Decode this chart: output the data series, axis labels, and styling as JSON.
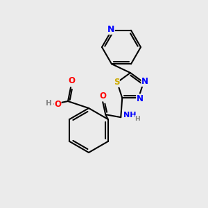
{
  "bg_color": "#ebebeb",
  "bond_color": "#000000",
  "bond_width": 1.5,
  "atom_colors": {
    "N": "#0000ff",
    "S": "#ccaa00",
    "O": "#ff0000",
    "C": "#000000",
    "H": "#808080"
  },
  "font_size": 8.5
}
